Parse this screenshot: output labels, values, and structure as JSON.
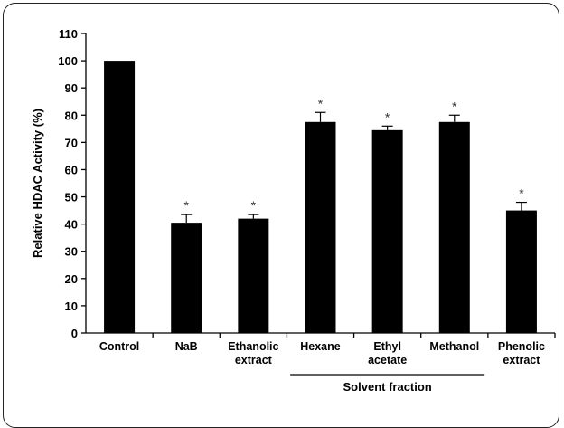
{
  "chart_data": {
    "type": "bar",
    "categories": [
      "Control",
      "NaB",
      "Ethanolic extract",
      "Hexane",
      "Ethyl acetate",
      "Methanol",
      "Phenolic extract"
    ],
    "category_lines": [
      [
        "Control"
      ],
      [
        "NaB"
      ],
      [
        "Ethanolic",
        "extract"
      ],
      [
        "Hexane"
      ],
      [
        "Ethyl",
        "acetate"
      ],
      [
        "Methanol"
      ],
      [
        "Phenolic",
        "extract"
      ]
    ],
    "values": [
      100,
      40.5,
      42,
      77.5,
      74.5,
      77.5,
      45
    ],
    "errors": [
      0,
      3,
      1.5,
      3.5,
      1.5,
      2.5,
      3
    ],
    "significance": [
      "",
      "*",
      "*",
      "*",
      "*",
      "*",
      "*"
    ],
    "ylabel": "Relative HDAC Activity (%)",
    "ylim": [
      0,
      110
    ],
    "yticks": [
      0,
      10,
      20,
      30,
      40,
      50,
      60,
      70,
      80,
      90,
      100,
      110
    ],
    "group_label": "Solvent fraction",
    "group_span": [
      "Hexane",
      "Methanol"
    ],
    "bar_color": "#000000"
  }
}
